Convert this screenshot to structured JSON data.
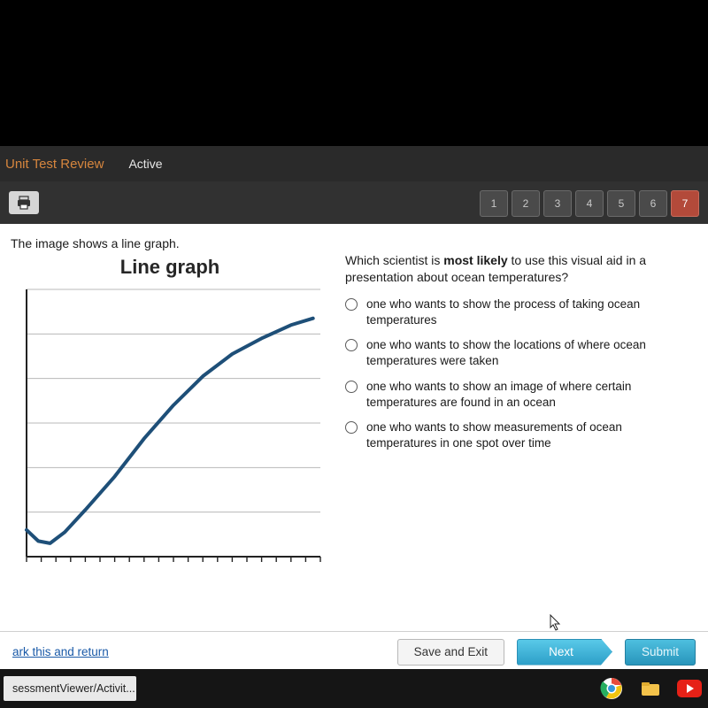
{
  "header": {
    "title": "Unit Test Review",
    "status": "Active"
  },
  "nav": {
    "items": [
      "1",
      "2",
      "3",
      "4",
      "5",
      "6",
      "7"
    ],
    "current_index": 6,
    "item_bg": "#4a4a4a",
    "current_bg": "#b34a3a"
  },
  "left": {
    "intro": "The image shows a line graph.",
    "chart": {
      "type": "line",
      "title": "Line graph",
      "title_fontsize": 22,
      "background_color": "#ffffff",
      "line_color": "#1e4f78",
      "line_width": 4,
      "axis_color": "#222222",
      "grid_color": "#b8b8b8",
      "xlim": [
        0,
        20
      ],
      "ylim": [
        0,
        6
      ],
      "y_gridlines": [
        1,
        2,
        3,
        4,
        5,
        6
      ],
      "x_tick_step": 1,
      "points": [
        [
          0.0,
          0.6
        ],
        [
          0.8,
          0.35
        ],
        [
          1.6,
          0.3
        ],
        [
          2.6,
          0.55
        ],
        [
          4.0,
          1.05
        ],
        [
          6.0,
          1.8
        ],
        [
          8.0,
          2.65
        ],
        [
          10.0,
          3.4
        ],
        [
          12.0,
          4.05
        ],
        [
          14.0,
          4.55
        ],
        [
          16.0,
          4.9
        ],
        [
          18.0,
          5.2
        ],
        [
          19.5,
          5.35
        ]
      ]
    }
  },
  "right": {
    "question_pre": "Which scientist is ",
    "question_bold": "most likely",
    "question_post": " to use this visual aid in a presentation about ocean temperatures?",
    "options": [
      "one who wants to show the process of taking ocean temperatures",
      "one who wants to show the locations of where ocean temperatures were taken",
      "one who wants to show an image of where certain temperatures are found in an ocean",
      "one who wants to show measurements of ocean temperatures in one spot over time"
    ]
  },
  "footer": {
    "mark_link": "ark this and return",
    "save_exit": "Save and Exit",
    "next": "Next",
    "submit": "Submit"
  },
  "taskbar": {
    "tab": "sessmentViewer/Activit..."
  },
  "colors": {
    "accent_orange": "#d6863e",
    "window_frame": "#c8969e",
    "btn_next_top": "#59c9e8",
    "btn_next_bottom": "#2d9fc8"
  }
}
